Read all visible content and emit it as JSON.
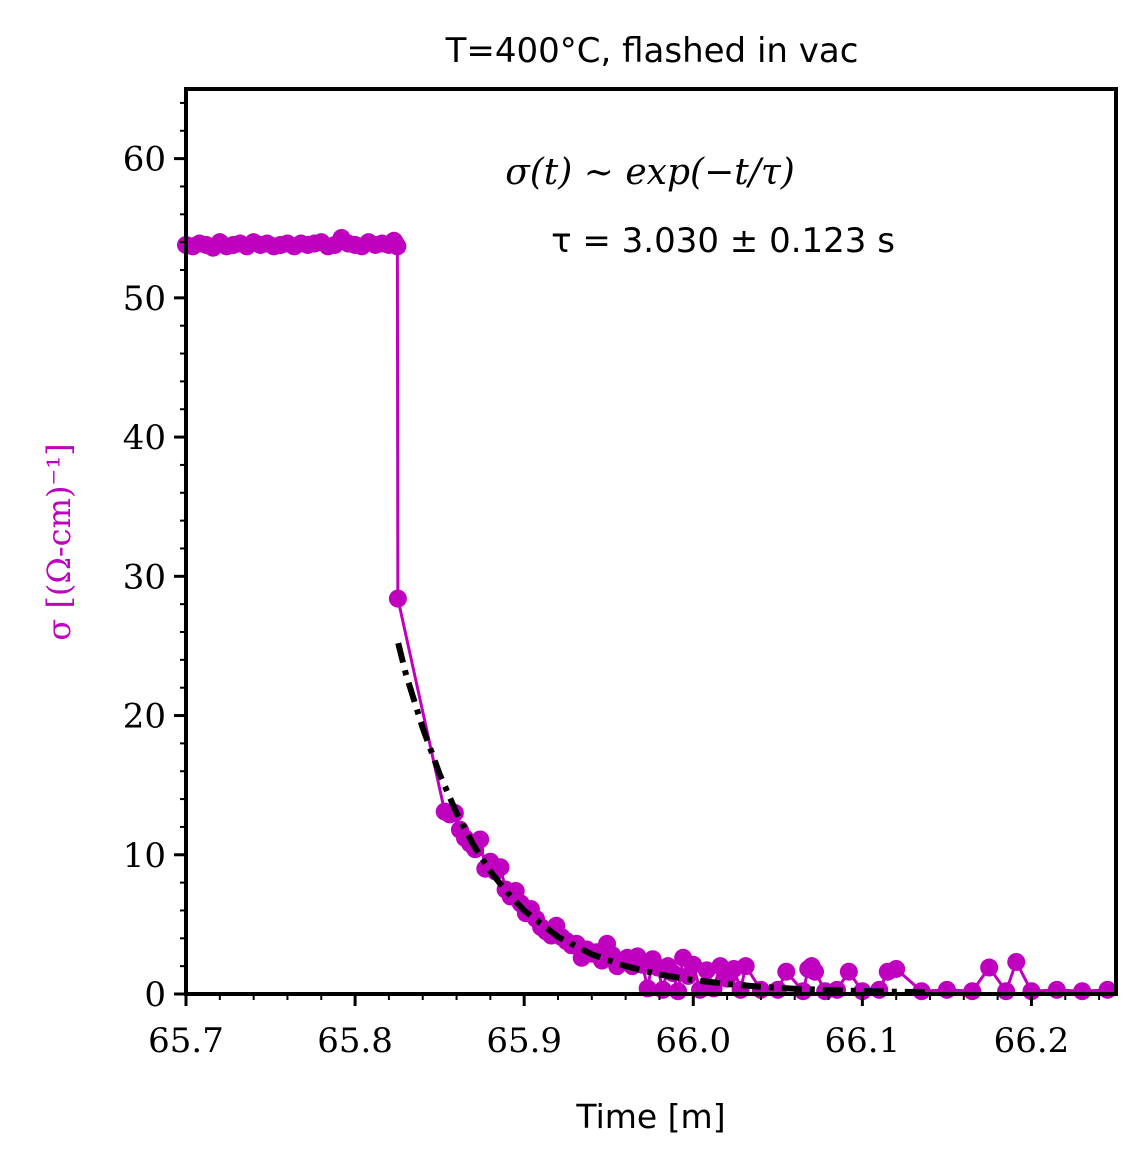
{
  "chart_data": {
    "type": "scatter",
    "title": "T=400°C, flashed in vac",
    "xlabel": "Time [m]",
    "ylabel": "σ [(Ω-cm)⁻¹]",
    "xlim": [
      65.7,
      66.25
    ],
    "ylim": [
      0,
      65
    ],
    "xticks": [
      "65.7",
      "65.8",
      "65.9",
      "66.0",
      "66.1",
      "66.2"
    ],
    "yticks": [
      "0",
      "10",
      "20",
      "30",
      "40",
      "50",
      "60"
    ],
    "annotations": {
      "model": "σ(t) ∼ exp(−t/τ)",
      "fit": "τ = 3.030 ± 0.123 s"
    },
    "colors": {
      "data": "#bf00bf",
      "fit": "#000000"
    },
    "series": [
      {
        "style": "magenta line with circle markers",
        "x": [
          65.7,
          65.704,
          65.708,
          65.712,
          65.716,
          65.72,
          65.724,
          65.728,
          65.732,
          65.736,
          65.74,
          65.744,
          65.748,
          65.752,
          65.756,
          65.76,
          65.764,
          65.768,
          65.772,
          65.776,
          65.78,
          65.784,
          65.788,
          65.792,
          65.796,
          65.8,
          65.804,
          65.808,
          65.812,
          65.816,
          65.82,
          65.823,
          65.824,
          65.825,
          65.8253,
          65.853,
          65.856,
          65.859,
          65.862,
          65.865,
          65.868,
          65.871,
          65.874,
          65.877,
          65.88,
          65.883,
          65.886,
          65.889,
          65.892,
          65.895,
          65.898,
          65.901,
          65.904,
          65.907,
          65.91,
          65.913,
          65.916,
          65.919,
          65.922,
          65.925,
          65.928,
          65.931,
          65.934,
          65.937,
          65.94,
          65.943,
          65.946,
          65.949,
          65.952,
          65.955,
          65.958,
          65.961,
          65.964,
          65.967,
          65.97,
          65.973,
          65.976,
          65.979,
          65.982,
          65.985,
          65.988,
          65.991,
          65.994,
          65.997,
          66.0,
          66.004,
          66.008,
          66.012,
          66.016,
          66.02,
          66.024,
          66.028,
          66.031,
          66.04,
          66.05,
          66.055,
          66.065,
          66.068,
          66.07,
          66.072,
          66.078,
          66.085,
          66.092,
          66.1,
          66.11,
          66.115,
          66.12,
          66.135,
          66.15,
          66.165,
          66.175,
          66.185,
          66.191,
          66.2,
          66.215,
          66.23,
          66.245
        ],
        "y": [
          53.8,
          53.7,
          53.9,
          53.8,
          53.6,
          54.0,
          53.7,
          53.8,
          53.9,
          53.7,
          54.0,
          53.8,
          53.9,
          53.7,
          53.8,
          53.9,
          53.7,
          53.9,
          53.8,
          53.9,
          54.0,
          53.7,
          53.8,
          54.3,
          53.9,
          53.8,
          53.7,
          54.0,
          53.8,
          53.9,
          53.8,
          54.1,
          53.9,
          53.7,
          28.4,
          13.1,
          12.9,
          13.0,
          11.8,
          11.2,
          10.8,
          10.4,
          11.1,
          9.0,
          9.5,
          8.8,
          9.1,
          7.5,
          7.0,
          7.4,
          6.5,
          5.8,
          6.1,
          5.4,
          4.8,
          4.5,
          4.2,
          4.9,
          4.1,
          3.8,
          3.5,
          3.6,
          2.6,
          3.2,
          2.9,
          3.0,
          2.4,
          3.6,
          2.8,
          2.0,
          2.3,
          2.6,
          2.0,
          2.7,
          2.1,
          0.4,
          2.5,
          1.9,
          0.3,
          2.0,
          1.5,
          0.2,
          2.6,
          1.3,
          2.1,
          0.3,
          1.7,
          0.4,
          2.0,
          1.1,
          1.8,
          0.3,
          2.0,
          0.3,
          0.3,
          1.6,
          0.2,
          1.8,
          2.0,
          1.6,
          0.2,
          0.3,
          1.6,
          0.2,
          0.3,
          1.6,
          1.8,
          0.2,
          0.3,
          0.2,
          1.9,
          0.2,
          2.3,
          0.2,
          0.3,
          0.2,
          0.3
        ]
      },
      {
        "style": "black dash-dot fit",
        "x": [
          65.8255,
          65.83,
          65.84,
          65.85,
          65.86,
          65.87,
          65.88,
          65.89,
          65.9,
          65.92,
          65.94,
          65.96,
          65.98,
          66.0,
          66.02,
          66.04,
          66.06,
          66.08,
          66.1,
          66.12,
          66.14
        ],
        "y": [
          25.2,
          23.0,
          19.1,
          15.8,
          13.0,
          10.7,
          8.8,
          7.3,
          6.0,
          4.1,
          2.85,
          2.0,
          1.4,
          1.0,
          0.72,
          0.52,
          0.38,
          0.28,
          0.21,
          0.16,
          0.12
        ]
      }
    ]
  }
}
